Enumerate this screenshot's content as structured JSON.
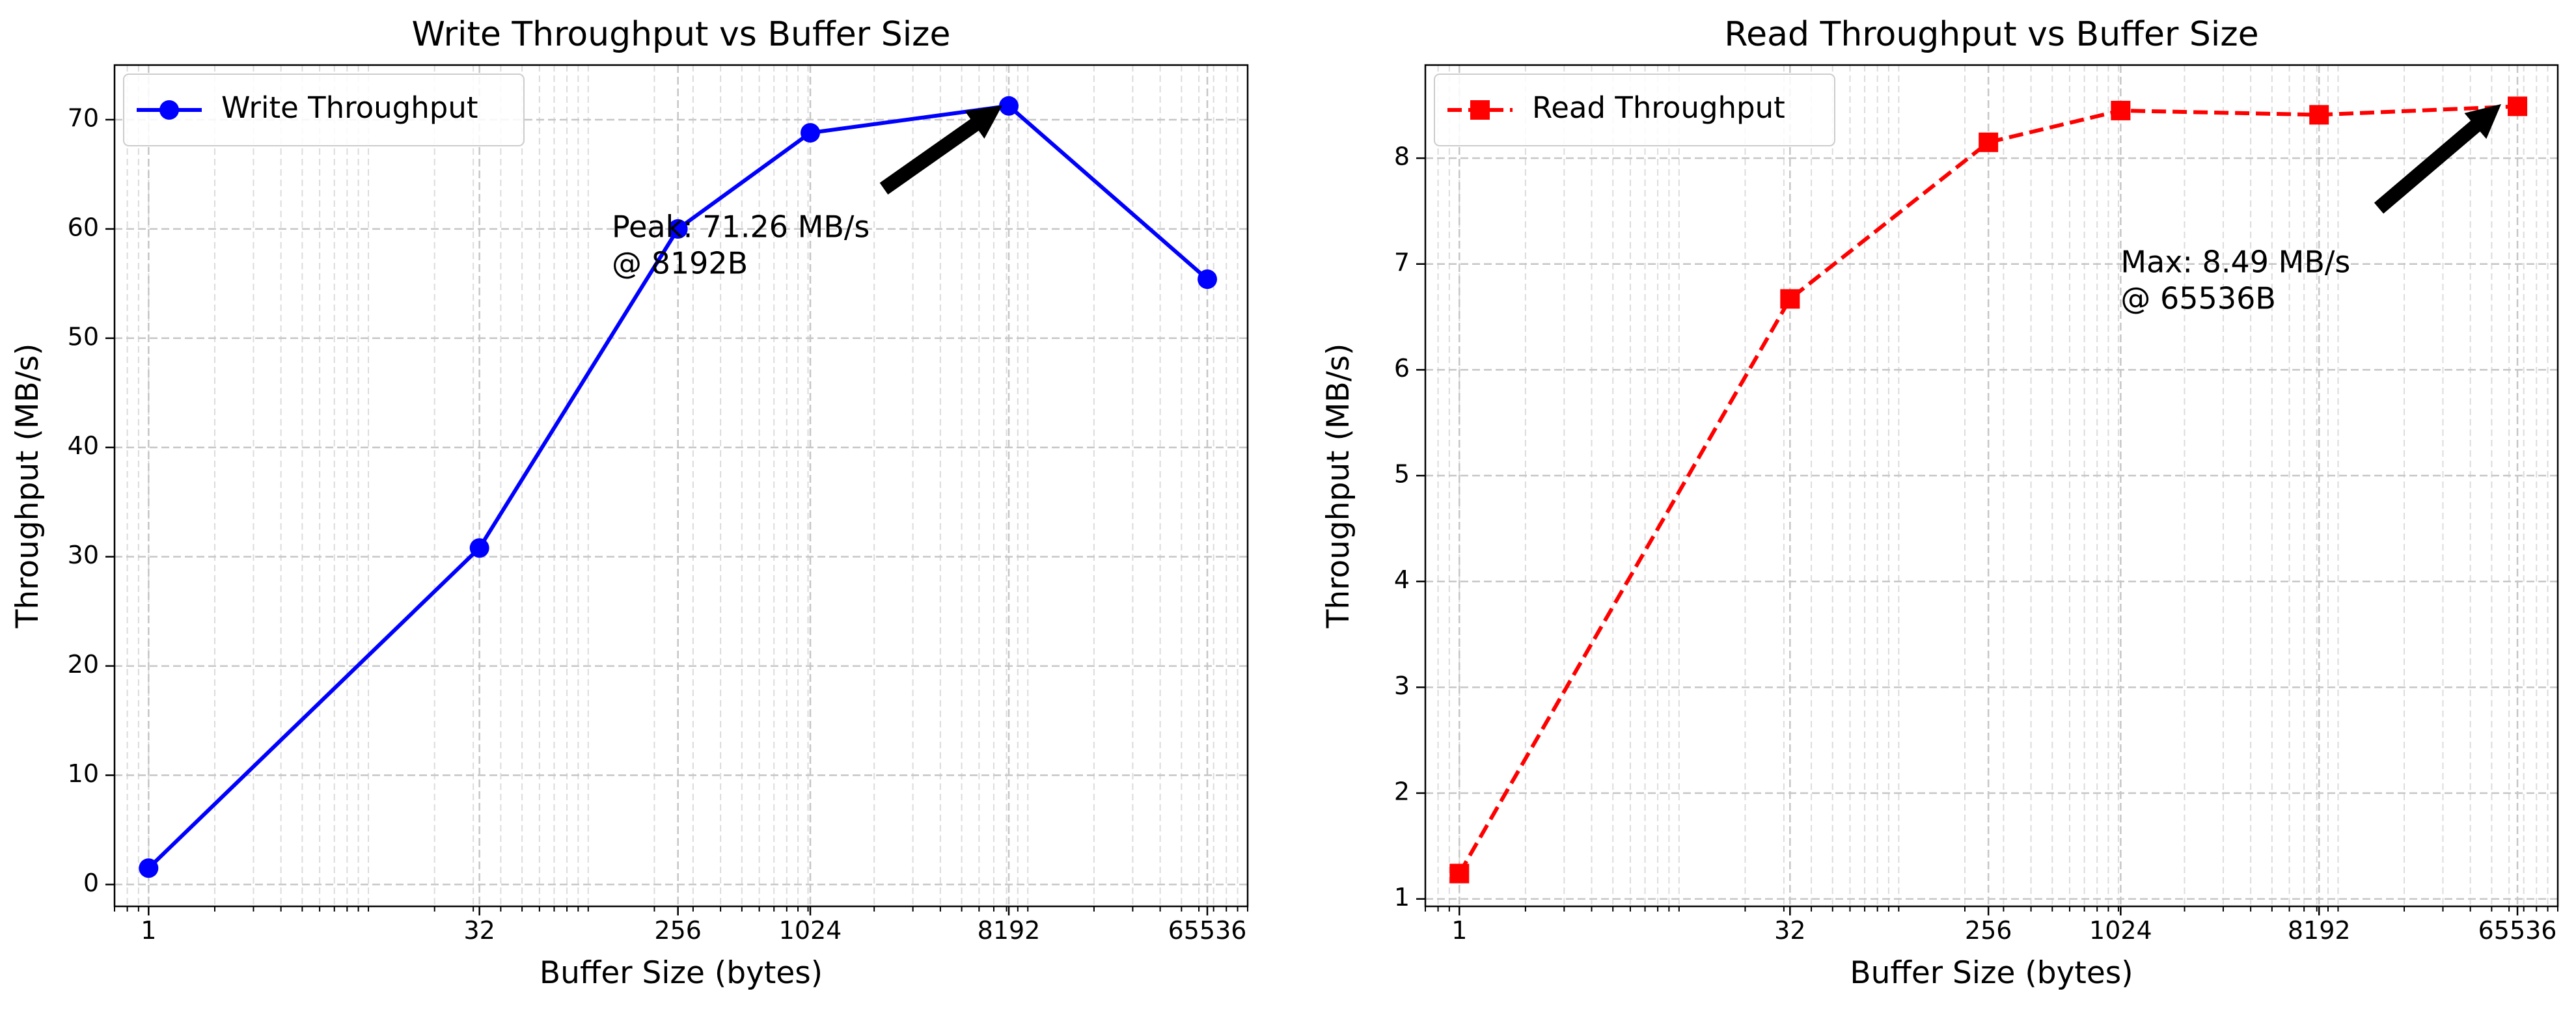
{
  "chart_data": [
    {
      "type": "line",
      "title": "Write Throughput vs Buffer Size",
      "xlabel": "Buffer Size (bytes)",
      "ylabel": "Throughput (MB/s)",
      "x_scale": "log2",
      "xlim": [
        0.7,
        100000
      ],
      "ylim": [
        -2,
        75
      ],
      "grid": true,
      "grid_minor": true,
      "legend_position": "upper left",
      "xticks": [
        1,
        32,
        256,
        1024,
        8192,
        65536
      ],
      "xtick_labels": [
        "1",
        "32",
        "256",
        "1024",
        "8192",
        "65536"
      ],
      "yticks": [
        0,
        10,
        20,
        30,
        40,
        50,
        60,
        70
      ],
      "ytick_labels": [
        "0",
        "10",
        "20",
        "30",
        "40",
        "50",
        "60",
        "70"
      ],
      "series": [
        {
          "name": "Write Throughput",
          "color": "#0000ff",
          "line_style": "solid",
          "marker": "circle",
          "x": [
            1,
            32,
            256,
            1024,
            8192,
            65536
          ],
          "y": [
            1.5,
            30.8,
            60.0,
            68.8,
            71.26,
            55.4
          ]
        }
      ],
      "annotation": {
        "lines": [
          "Peak: 71.26 MB/s",
          "@ 8192B"
        ],
        "point_x": 8192,
        "point_y": 71.26,
        "text_x": 128,
        "text_y": 60
      }
    },
    {
      "type": "line",
      "title": "Read Throughput vs Buffer Size",
      "xlabel": "Buffer Size (bytes)",
      "ylabel": "Throughput (MB/s)",
      "x_scale": "log2",
      "xlim": [
        0.7,
        100000
      ],
      "ylim": [
        0.93,
        8.88
      ],
      "grid": true,
      "grid_minor": true,
      "legend_position": "upper left",
      "xticks": [
        1,
        32,
        256,
        1024,
        8192,
        65536
      ],
      "xtick_labels": [
        "1",
        "32",
        "256",
        "1024",
        "8192",
        "65536"
      ],
      "yticks": [
        1,
        2,
        3,
        4,
        5,
        6,
        7,
        8
      ],
      "ytick_labels": [
        "1",
        "2",
        "3",
        "4",
        "5",
        "6",
        "7",
        "8"
      ],
      "series": [
        {
          "name": "Read Throughput",
          "color": "#ff0000",
          "line_style": "dashed",
          "marker": "square",
          "x": [
            1,
            32,
            256,
            1024,
            8192,
            65536
          ],
          "y": [
            1.24,
            6.67,
            8.15,
            8.45,
            8.41,
            8.49
          ]
        }
      ],
      "annotation": {
        "lines": [
          "Max: 8.49 MB/s",
          "@ 65536B"
        ],
        "point_x": 65536,
        "point_y": 8.49,
        "text_x": 1024,
        "text_y": 7.0
      }
    }
  ]
}
